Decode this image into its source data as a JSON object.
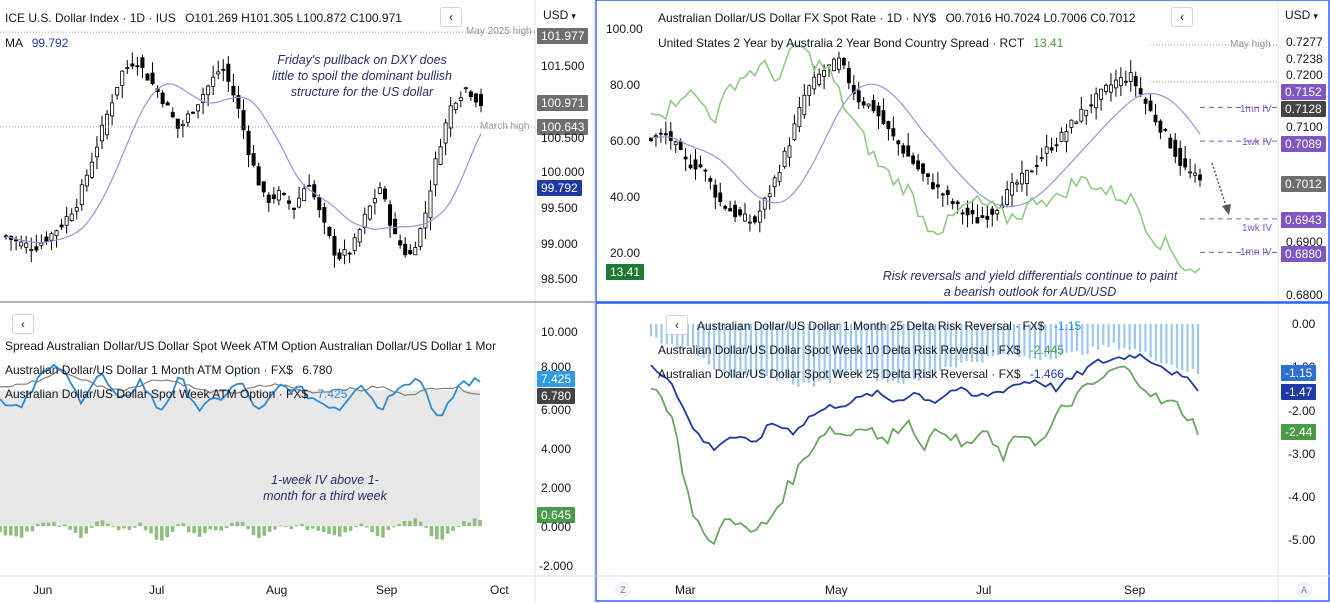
{
  "colors": {
    "up": "#000000",
    "down": "#000000",
    "ma": "#8e9ad9",
    "green": "#6aa861",
    "blue": "#2e8bd6",
    "darkblue": "#1f3aa6",
    "grey": "#808080",
    "purple": "#7e57c2",
    "red_text": "#131722"
  },
  "left_top": {
    "title": "ICE U.S. Dollar Index · 1D · IUS",
    "ohlc": "O101.269 H101.305 L100.872 C100.971",
    "ma_label": "MA",
    "ma_value": "99.792",
    "unit": "USD",
    "annotation": "Friday's pullback on DXY does little to spoil the dominant bullish structure for the US dollar",
    "notes": [
      "May 2025 high",
      "March high"
    ],
    "badges": [
      "101.977",
      "100.971",
      "100.643",
      "99.792"
    ]
  },
  "left_bottom": {
    "legend1": "Spread Australian Dollar/US Dollar Spot Week ATM Option Australian Dollar/US Dollar 1 Mor",
    "legend2_label": "Australian Dollar/US Dollar 1 Month ATM Option · FX$",
    "legend2_value": "6.780",
    "legend3_label": "Australian Dollar/US Dollar Spot Week ATM Option · FX$",
    "legend3_value": "7.425",
    "annotation": "1-week IV above 1-month for a third week",
    "badges": [
      "7.425",
      "6.780",
      "0.645"
    ]
  },
  "left_x": [
    "Jun",
    "Jul",
    "Aug",
    "Sep",
    "Oct"
  ],
  "right_top": {
    "title": "Australian Dollar/US Dollar FX Spot Rate · 1D · NY$",
    "ohlc": "O0.7016 H0.7024 L0.7006 C0.7012",
    "legend2_label": "United States 2 Year by Australia 2 Year Bond Country Spread · RCT",
    "legend2_value": "13.41",
    "unit": "USD",
    "annotation": "Risk reversals and yield differentials continue to paint a bearish outlook for AUD/USD",
    "notes": [
      "May high",
      "1mn IV",
      "1wk IV",
      "1wk IV",
      "1mn IV"
    ],
    "badges": [
      "0.7152",
      "0.7128",
      "0.7089",
      "0.7012",
      "0.6943",
      "0.6880"
    ],
    "left_badge": "13.41"
  },
  "right_bottom": {
    "legend1_label": "Australian Dollar/US Dollar 1 Month 25 Delta Risk Reversal · FX$",
    "legend1_value": "-1.15",
    "legend2_label": "Australian Dollar/US Dollar Spot Week 10 Delta Risk Reversal · FX$",
    "legend2_value": "-2.445",
    "legend3_label": "Australian Dollar/US Dollar Spot Week 25 Delta Risk Reversal · FX$",
    "legend3_value": "-1.466",
    "badges": [
      "-1.15",
      "-1.47",
      "-2.44"
    ]
  },
  "right_x": [
    "Mar",
    "May",
    "Jul",
    "Sep"
  ],
  "corner_left": "Z",
  "corner_right": "A",
  "chart_data": [
    {
      "type": "candlestick",
      "title": "ICE U.S. Dollar Index · 1D · IUS",
      "x_range": [
        "May",
        "Oct"
      ],
      "y_ticks": [
        101.5,
        101.0,
        100.5,
        100.0,
        99.5,
        99.0,
        98.5
      ],
      "ylim": [
        98.3,
        102.0
      ],
      "levels": {
        "May 2025 high": 101.977,
        "March high": 100.643
      },
      "last_close": 100.971,
      "ma": 99.792
    },
    {
      "type": "line",
      "title": "Spread Australian Dollar/US Dollar Spot Week ATM Option Australian Dollar/US Dollar 1 Mor",
      "y_ticks": [
        10.0,
        8.0,
        6.0,
        4.0,
        2.0,
        0.0,
        -2.0
      ],
      "ylim": [
        -2.3,
        11.0
      ],
      "series": [
        {
          "name": "Australian Dollar/US Dollar 1 Month ATM Option · FX$",
          "last": 6.78
        },
        {
          "name": "Australian Dollar/US Dollar Spot Week ATM Option · FX$",
          "last": 7.425
        },
        {
          "name": "Spread",
          "last": 0.645
        }
      ]
    },
    {
      "type": "candlestick",
      "title": "Australian Dollar/US Dollar FX Spot Rate · 1D · NY$",
      "x_range": [
        "Feb",
        "Oct"
      ],
      "y_ticks": [
        0.7277,
        0.7238,
        0.72,
        0.71,
        0.7,
        0.69,
        0.68
      ],
      "ylim": [
        0.679,
        0.73
      ],
      "left_y_ticks": [
        100,
        80,
        60,
        40,
        20
      ],
      "levels": {
        "May high": 0.7277,
        "1mn IV upper": 0.7152,
        "1wk IV upper": 0.7089,
        "1wk IV lower": 0.6943,
        "1mn IV lower": 0.688
      },
      "last_close": 0.7012,
      "series": [
        {
          "name": "United States 2 Year by Australia 2 Year Bond Country Spread · RCT",
          "last": 13.41
        }
      ]
    },
    {
      "type": "line",
      "title": "Australian Dollar/US Dollar 1 Month 25 Delta Risk Reversal · FX$",
      "y_ticks": [
        0.0,
        -1.0,
        -2.0,
        -3.0,
        -4.0,
        -5.0
      ],
      "ylim": [
        -5.5,
        0.3
      ],
      "series": [
        {
          "name": "Australian Dollar/US Dollar 1 Month 25 Delta Risk Reversal · FX$",
          "last": -1.15
        },
        {
          "name": "Australian Dollar/US Dollar Spot Week 10 Delta Risk Reversal · FX$",
          "last": -2.445
        },
        {
          "name": "Australian Dollar/US Dollar Spot Week 25 Delta Risk Reversal · FX$",
          "last": -1.466
        }
      ]
    }
  ],
  "ticks": {
    "lt": [
      "101.500",
      "100.500",
      "100.000",
      "99.500",
      "99.000",
      "98.500"
    ],
    "lb": [
      "10.000",
      "8.000",
      "6.000",
      "4.000",
      "2.000",
      "0.000",
      "-2.000"
    ],
    "rt_right": [
      "0.7277",
      "0.7238",
      "0.7200",
      "0.7100",
      "0.6900",
      "0.6800"
    ],
    "rt_left": [
      "100.00",
      "80.00",
      "60.00",
      "40.00",
      "20.00"
    ],
    "rb": [
      "0.00",
      "-1.00",
      "-2.00",
      "-3.00",
      "-4.00",
      "-5.00"
    ]
  }
}
